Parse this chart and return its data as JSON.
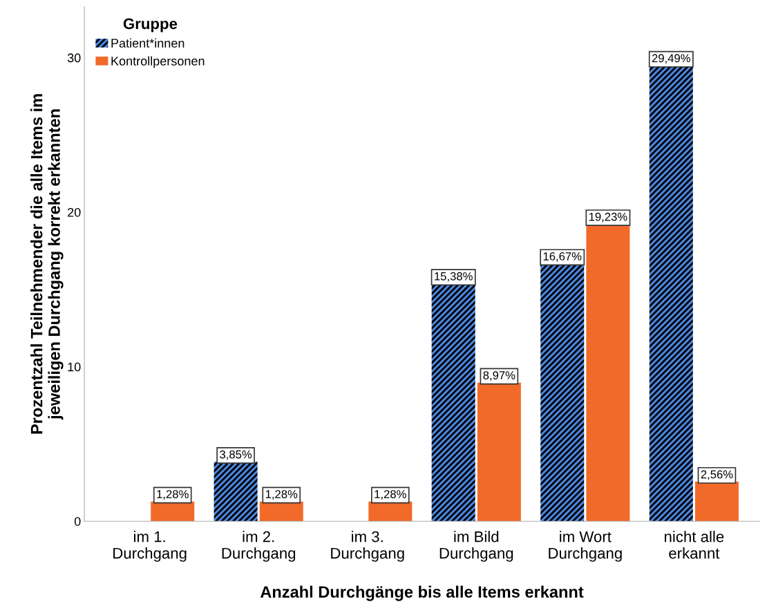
{
  "chart_data": {
    "type": "bar",
    "xlabel": "Anzahl Durchgänge bis alle Items erkannt",
    "ylabel": "Prozentzahl Teilnehmender die alle Items im\njeweiligen Durchgang korrekt erkannten",
    "legend_title": "Gruppe",
    "categories": [
      "im 1.\nDurchgang",
      "im 2.\nDurchgang",
      "im 3.\nDurchgang",
      "im Bild\nDurchgang",
      "im Wort\nDurchgang",
      "nicht alle\nerkannt"
    ],
    "series": [
      {
        "name": "Patient*innen",
        "color": "#4a86e0",
        "values": [
          null,
          3.85,
          null,
          15.38,
          16.67,
          29.49
        ],
        "value_labels": [
          null,
          "3,85%",
          null,
          "15,38%",
          "16,67%",
          "29,49%"
        ]
      },
      {
        "name": "Kontrollpersonen",
        "color": "#f26a2a",
        "values": [
          1.28,
          1.28,
          1.28,
          8.97,
          19.23,
          2.56
        ],
        "value_labels": [
          "1,28%",
          "1,28%",
          "1,28%",
          "8,97%",
          "19,23%",
          "2,56%"
        ]
      }
    ],
    "ylim": [
      0,
      33.3
    ],
    "yticks": [
      0,
      10,
      20,
      30
    ],
    "grid": false,
    "legend": "top left"
  }
}
